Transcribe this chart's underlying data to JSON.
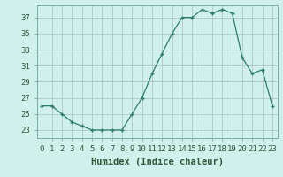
{
  "x": [
    0,
    1,
    2,
    3,
    4,
    5,
    6,
    7,
    8,
    9,
    10,
    11,
    12,
    13,
    14,
    15,
    16,
    17,
    18,
    19,
    20,
    21,
    22,
    23
  ],
  "y": [
    26.0,
    26.0,
    25.0,
    24.0,
    23.5,
    23.0,
    23.0,
    23.0,
    23.0,
    25.0,
    27.0,
    30.0,
    32.5,
    35.0,
    37.0,
    37.0,
    38.0,
    37.5,
    38.0,
    37.5,
    32.0,
    30.0,
    30.5,
    26.0
  ],
  "line_color": "#2e7d6e",
  "marker": "+",
  "marker_size": 3,
  "bg_color": "#cff0eb",
  "grid_color": "#b0c8c4",
  "xlabel": "Humidex (Indice chaleur)",
  "xlim": [
    -0.5,
    23.5
  ],
  "ylim": [
    22.0,
    38.5
  ],
  "yticks": [
    23,
    25,
    27,
    29,
    31,
    33,
    35,
    37
  ],
  "xtick_labels": [
    "0",
    "1",
    "2",
    "3",
    "4",
    "5",
    "6",
    "7",
    "8",
    "9",
    "10",
    "11",
    "12",
    "13",
    "14",
    "15",
    "16",
    "17",
    "18",
    "19",
    "20",
    "21",
    "22",
    "23"
  ],
  "font_color": "#2e5a3a",
  "tick_fontsize": 6.5,
  "label_fontsize": 7.5
}
